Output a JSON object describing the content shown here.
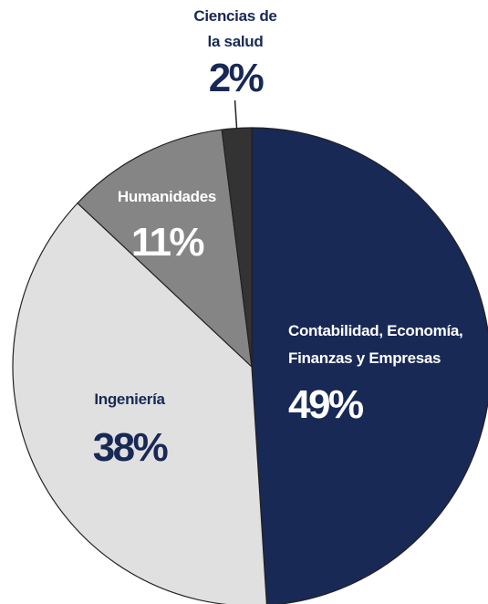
{
  "chart_data": {
    "type": "pie",
    "title": "",
    "slices": [
      {
        "category": "Contabilidad, Economía, Finanzas y Empresas",
        "category_lines": [
          "Contabilidad, Economía,",
          "Finanzas y Empresas"
        ],
        "value": 49,
        "label": "49%",
        "color": "#182955",
        "text_color": "#ffffff"
      },
      {
        "category": "Ingeniería",
        "category_lines": [
          "Ingeniería"
        ],
        "value": 38,
        "label": "38%",
        "color": "#e0e0e0",
        "text_color": "#182955"
      },
      {
        "category": "Humanidades",
        "category_lines": [
          "Humanidades"
        ],
        "value": 11,
        "label": "11%",
        "color": "#858585",
        "text_color": "#ffffff"
      },
      {
        "category": "Ciencias de la salud",
        "category_lines": [
          "Ciencias de",
          "la salud"
        ],
        "value": 2,
        "label": "2%",
        "color": "#333333",
        "text_color": "#182955"
      }
    ],
    "start_angle": "12 o'clock",
    "direction": "clockwise",
    "legend": "none",
    "slice_border_color": "#222222",
    "leader_line_color": "#222222"
  }
}
